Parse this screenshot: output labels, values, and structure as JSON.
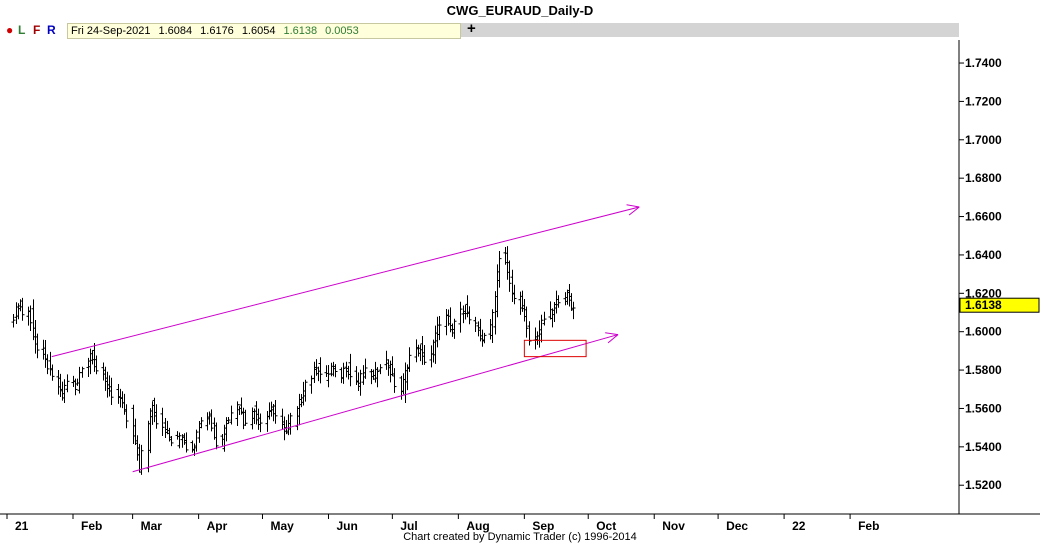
{
  "title": "CWG_EURAUD_Daily-D",
  "toolbar": {
    "dot_label": "●",
    "l_label": "L",
    "f_label": "F",
    "r_label": "R",
    "plus_label": "+",
    "info": {
      "date": "Fri 24-Sep-2021",
      "open": "1.6084",
      "high": "1.6176",
      "low": "1.6054",
      "close": "1.6138",
      "change": "0.0053"
    }
  },
  "footer": "Chart created by Dynamic Trader  (c) 1996-2014",
  "chart_data": {
    "type": "ohlc",
    "y_ticks": [
      "1.5200",
      "1.5400",
      "1.5600",
      "1.5800",
      "1.6000",
      "1.6200",
      "1.6400",
      "1.6600",
      "1.6800",
      "1.7000",
      "1.7200",
      "1.7400"
    ],
    "ylim": [
      1.505,
      1.752
    ],
    "x_labels": [
      "21",
      "Feb",
      "Mar",
      "Apr",
      "May",
      "Jun",
      "Jul",
      "Aug",
      "Sep",
      "Oct",
      "Nov",
      "Dec",
      "22",
      "Feb"
    ],
    "last_price": "1.6138",
    "series_close": [
      1.608,
      1.612,
      1.615,
      1.609,
      1.611,
      1.602,
      1.596,
      1.591,
      1.586,
      1.584,
      1.58,
      1.576,
      1.571,
      1.566,
      1.57,
      1.575,
      1.573,
      1.568,
      1.578,
      1.582,
      1.586,
      1.59,
      1.584,
      1.58,
      1.575,
      1.572,
      1.57,
      1.567,
      1.565,
      1.562,
      1.56,
      1.552,
      1.543,
      1.54,
      1.528,
      1.538,
      1.556,
      1.563,
      1.558,
      1.553,
      1.55,
      1.548,
      1.545,
      1.542,
      1.545,
      1.547,
      1.543,
      1.539,
      1.54,
      1.545,
      1.552,
      1.556,
      1.558,
      1.552,
      1.545,
      1.54,
      1.548,
      1.553,
      1.556,
      1.56,
      1.563,
      1.558,
      1.552,
      1.555,
      1.56,
      1.556,
      1.552,
      1.555,
      1.558,
      1.56,
      1.557,
      1.553,
      1.55,
      1.548,
      1.552,
      1.557,
      1.562,
      1.567,
      1.572,
      1.575,
      1.579,
      1.583,
      1.58,
      1.576,
      1.578,
      1.582,
      1.579,
      1.576,
      1.58,
      1.583,
      1.578,
      1.575,
      1.573,
      1.577,
      1.58,
      1.578,
      1.576,
      1.579,
      1.582,
      1.585,
      1.582,
      1.578,
      1.575,
      1.568,
      1.574,
      1.58,
      1.586,
      1.59,
      1.593,
      1.588,
      1.584,
      1.588,
      1.594,
      1.6,
      1.604,
      1.608,
      1.602,
      1.598,
      1.604,
      1.61,
      1.613,
      1.61,
      1.607,
      1.603,
      1.598,
      1.595,
      1.598,
      1.602,
      1.612,
      1.626,
      1.64,
      1.636,
      1.628,
      1.621,
      1.617,
      1.614,
      1.61,
      1.603,
      1.595,
      1.597,
      1.6,
      1.603,
      1.607,
      1.61,
      1.612,
      1.615,
      1.617,
      1.62,
      1.618,
      1.612,
      1.6138
    ],
    "trendlines": [
      {
        "color": "#cc00cc",
        "from": [
          "2021-01-22",
          1.587
        ],
        "to": [
          "2021-10-25",
          1.665
        ],
        "arrow": true
      },
      {
        "color": "#cc00cc",
        "from": [
          "2021-03-01",
          1.527
        ],
        "to": [
          "2021-10-15",
          1.5985
        ],
        "arrow": true
      }
    ],
    "zone": {
      "color": "#dd0000",
      "from": "2021-09-01",
      "to": "2021-09-30",
      "high": 1.5955,
      "low": 1.587
    }
  }
}
